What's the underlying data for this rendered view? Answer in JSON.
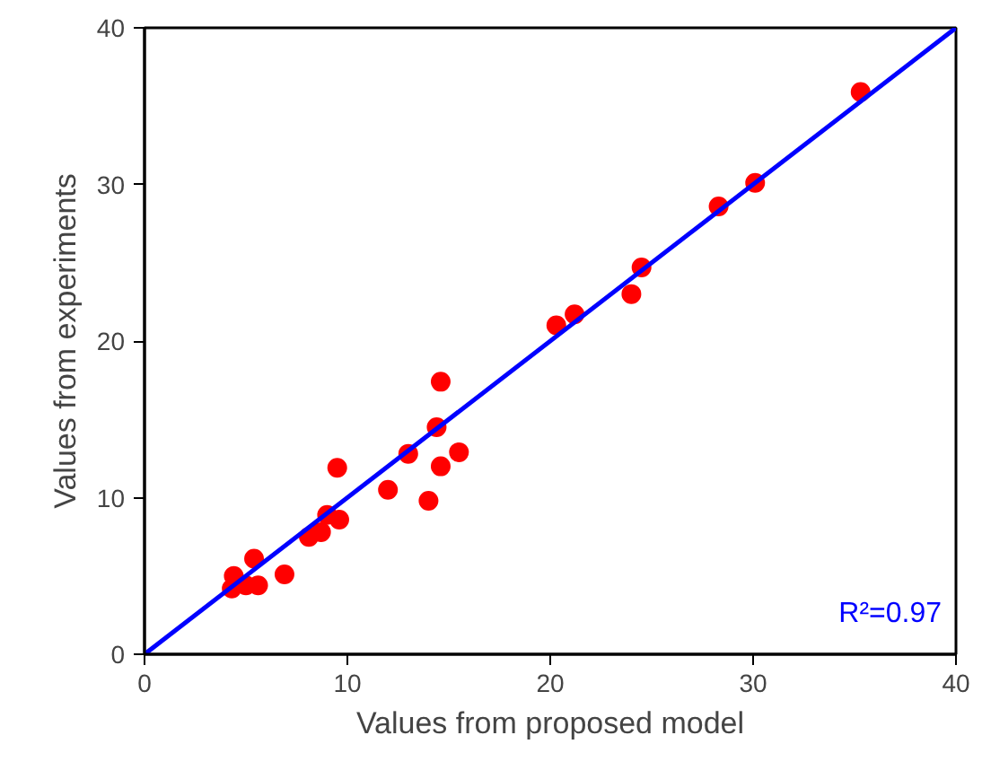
{
  "chart_data": {
    "type": "scatter",
    "xlabel": "Values from proposed model",
    "ylabel": "Values from experiments",
    "xlim": [
      0,
      40
    ],
    "ylim": [
      0,
      40
    ],
    "xticks": [
      0,
      10,
      20,
      30,
      40
    ],
    "yticks": [
      0,
      10,
      20,
      30,
      40
    ],
    "marker": "circle",
    "series": [
      {
        "color": "#ff0000",
        "x": [
          35.3,
          30.1,
          28.3,
          24.5,
          24.0,
          20.3,
          21.2,
          14.6,
          14.4,
          15.5,
          14.6,
          13.0,
          9.5,
          12.0,
          14.0,
          9.6,
          9.0,
          8.7,
          8.1,
          6.9,
          5.4,
          4.3,
          5.0,
          5.6,
          4.4
        ],
        "values": [
          35.9,
          30.1,
          28.6,
          24.7,
          23.0,
          21.0,
          21.7,
          17.4,
          14.5,
          12.9,
          12.0,
          12.8,
          11.9,
          10.5,
          9.8,
          8.6,
          8.9,
          7.8,
          7.5,
          5.1,
          6.1,
          4.2,
          4.4,
          4.4,
          5.0
        ]
      },
      {
        "type": "line",
        "marker": "none",
        "color": "#0000ff",
        "x": [
          0,
          40
        ],
        "values": [
          0,
          40
        ]
      }
    ],
    "annotations": [
      "R²=0.97"
    ]
  }
}
